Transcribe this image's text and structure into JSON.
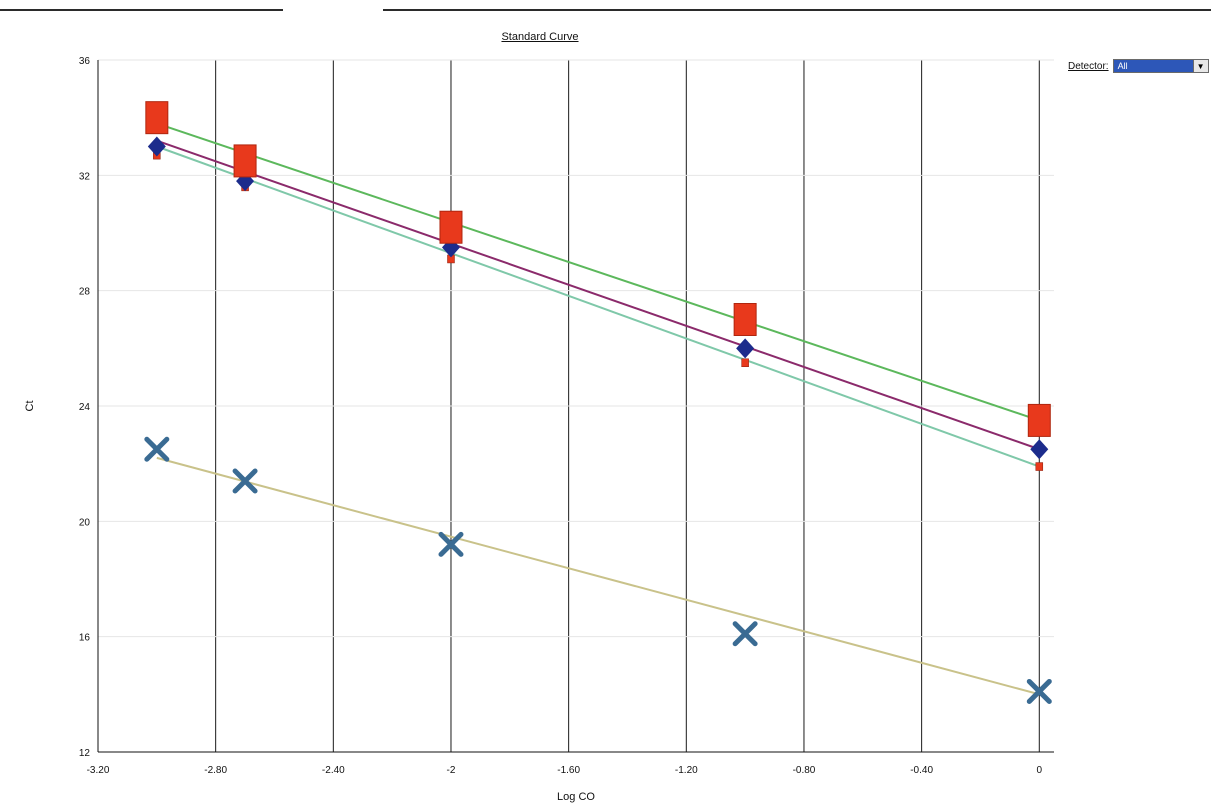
{
  "header": {
    "detector_label": "Detector:",
    "detector_value": "All"
  },
  "chart_data": {
    "type": "scatter",
    "title": "Standard Curve",
    "xlabel": "Log CO",
    "ylabel": "Ct",
    "xlim": [
      -3.2,
      0.05
    ],
    "ylim": [
      12,
      36
    ],
    "xticks": [
      "-3.20",
      "-2.80",
      "-2.40",
      "-2",
      "-1.60",
      "-1.20",
      "-0.80",
      "-0.40",
      "0"
    ],
    "yticks": [
      "12",
      "16",
      "20",
      "24",
      "28",
      "32",
      "36"
    ],
    "grid": "vertical",
    "legend": "none",
    "series": [
      {
        "marker": "square",
        "color": "#e8391c",
        "x": [
          -3,
          -2.7,
          -2,
          -1,
          0
        ],
        "y": [
          34.0,
          32.5,
          30.2,
          27.0,
          23.5
        ],
        "fit": {
          "x": [
            -3,
            0
          ],
          "y": [
            33.8,
            23.5
          ],
          "color": "#5cb85c"
        }
      },
      {
        "marker": "diamond",
        "color": "#1c2c8c",
        "x": [
          -3,
          -2.7,
          -2,
          -1,
          0
        ],
        "y": [
          33.0,
          31.8,
          29.5,
          26.0,
          22.5
        ],
        "fit": {
          "x": [
            -3,
            0
          ],
          "y": [
            33.2,
            22.5
          ],
          "color": "#8b2a6b"
        }
      },
      {
        "marker": "small-square",
        "color": "#e8391c",
        "x": [
          -3,
          -2.7,
          -2,
          -1,
          0
        ],
        "y": [
          32.7,
          31.6,
          29.1,
          25.5,
          21.9
        ],
        "fit": {
          "x": [
            -3,
            0
          ],
          "y": [
            33.0,
            21.9
          ],
          "color": "#7fc8a9"
        }
      },
      {
        "marker": "x",
        "color": "#3a6b93",
        "x": [
          -3,
          -2.7,
          -2,
          -1,
          0
        ],
        "y": [
          22.5,
          21.4,
          19.2,
          16.1,
          14.1
        ],
        "fit": {
          "x": [
            -3,
            0
          ],
          "y": [
            22.2,
            14.0
          ],
          "color": "#c9c28a"
        }
      }
    ]
  }
}
